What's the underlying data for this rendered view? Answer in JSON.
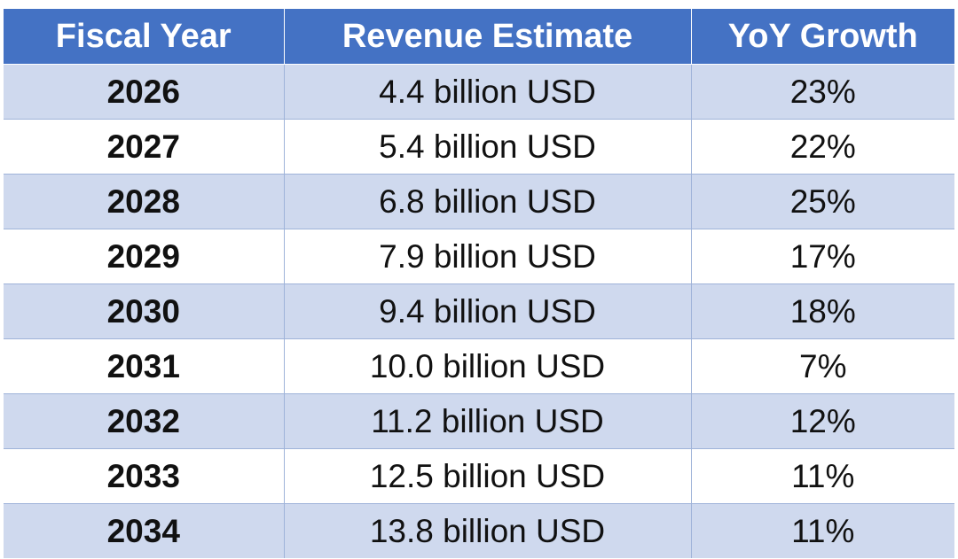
{
  "table": {
    "headers": [
      "Fiscal Year",
      "Revenue Estimate",
      "YoY Growth"
    ],
    "rows": [
      {
        "year": "2026",
        "revenue": "4.4 billion USD",
        "growth": "23%"
      },
      {
        "year": "2027",
        "revenue": "5.4 billion USD",
        "growth": "22%"
      },
      {
        "year": "2028",
        "revenue": "6.8 billion USD",
        "growth": "25%"
      },
      {
        "year": "2029",
        "revenue": "7.9 billion USD",
        "growth": "17%"
      },
      {
        "year": "2030",
        "revenue": "9.4 billion USD",
        "growth": "18%"
      },
      {
        "year": "2031",
        "revenue": "10.0 billion USD",
        "growth": "7%"
      },
      {
        "year": "2032",
        "revenue": "11.2 billion USD",
        "growth": "12%"
      },
      {
        "year": "2033",
        "revenue": "12.5 billion USD",
        "growth": "11%"
      },
      {
        "year": "2034",
        "revenue": "13.8 billion USD",
        "growth": "11%"
      }
    ]
  },
  "colors": {
    "header_bg": "#4472c4",
    "band_bg": "#cfd9ee",
    "row_bg": "#ffffff"
  }
}
